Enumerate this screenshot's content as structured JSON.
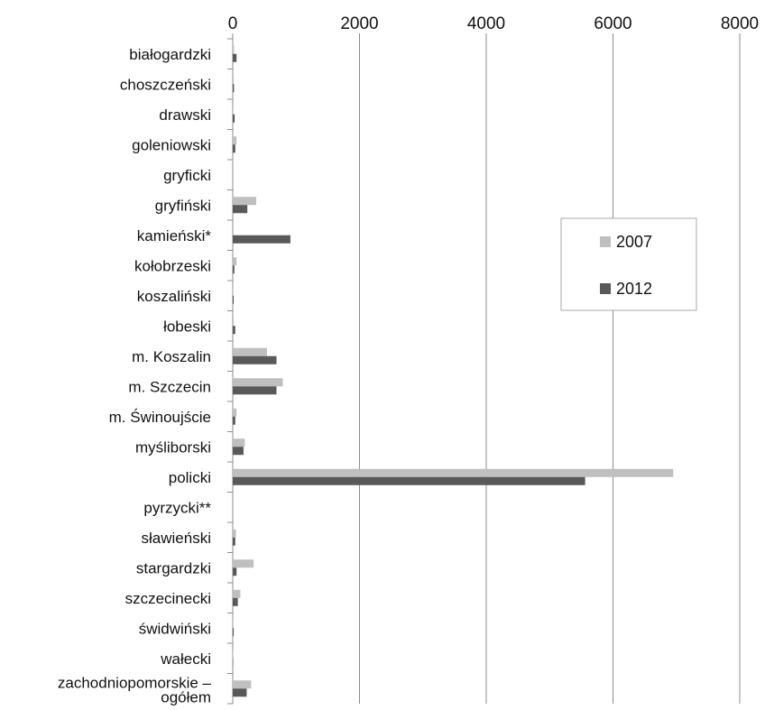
{
  "chart_data": {
    "type": "bar",
    "orientation": "horizontal",
    "categories": [
      "białogardzki",
      "choszczeński",
      "drawski",
      "goleniowski",
      "gryficki",
      "gryfiński",
      "kamieński*",
      "kołobrzeski",
      "koszaliński",
      "łobeski",
      "m. Koszalin",
      "m. Szczecin",
      "m. Świnoujście",
      "myśliborski",
      "policki",
      "pyrzycki**",
      "sławieński",
      "stargardzki",
      "szczecinecki",
      "świdwiński",
      "wałecki",
      [
        "zachodniopomorskie –",
        "ogółem"
      ]
    ],
    "series": [
      {
        "name": "2007",
        "color": "#bfbfbf",
        "values": [
          20,
          15,
          10,
          60,
          0,
          370,
          0,
          60,
          10,
          15,
          540,
          790,
          60,
          190,
          6950,
          0,
          50,
          330,
          120,
          10,
          5,
          290
        ]
      },
      {
        "name": "2012",
        "color": "#595959",
        "values": [
          60,
          20,
          30,
          40,
          0,
          230,
          910,
          25,
          15,
          40,
          690,
          690,
          40,
          170,
          5560,
          0,
          40,
          60,
          80,
          15,
          5,
          220
        ]
      }
    ],
    "xticks": [
      "0",
      "2000",
      "4000",
      "6000",
      "8000"
    ],
    "xlim": [
      0,
      8000
    ],
    "grid": true,
    "legend": "right",
    "title": "",
    "xlabel": "",
    "ylabel": ""
  }
}
